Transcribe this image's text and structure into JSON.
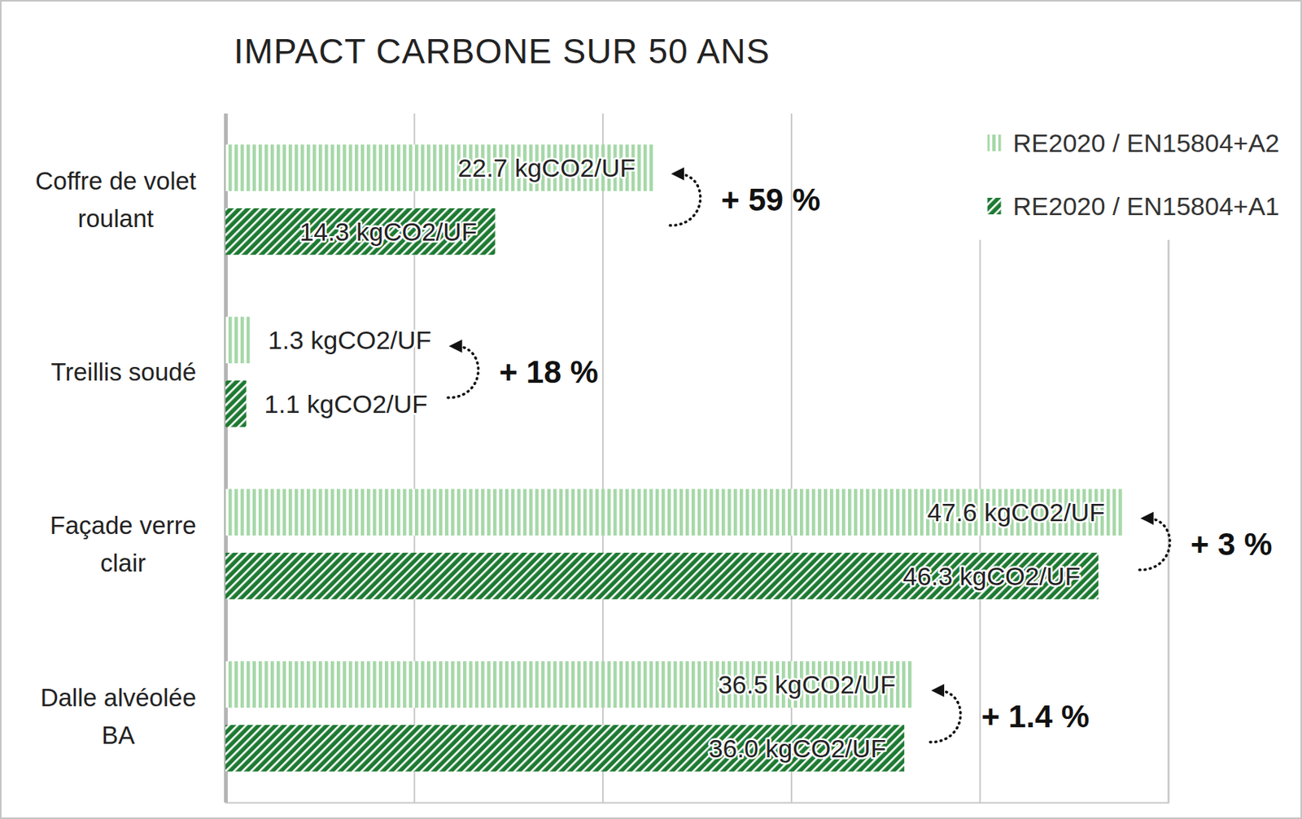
{
  "chart_data": {
    "type": "bar",
    "orientation": "horizontal",
    "title": "IMPACT CARBONE SUR 50 ANS",
    "categories": [
      "Coffre de volet roulant",
      "Treillis soudé",
      "Façade verre clair",
      "Dalle alvéolée BA"
    ],
    "series": [
      {
        "name": "RE2020 / EN15804+A2",
        "color": "#a6d8a8",
        "values": [
          22.7,
          1.3,
          47.6,
          36.5
        ],
        "value_labels": [
          "22.7 kgCO2/UF",
          "1.3 kgCO2/UF",
          "47.6 kgCO2/UF",
          "36.5 kgCO2/UF"
        ]
      },
      {
        "name": "RE2020 / EN15804+A1",
        "color": "#1e7a32",
        "values": [
          14.3,
          1.1,
          46.3,
          36.0
        ],
        "value_labels": [
          "14.3 kgCO2/UF",
          "1.1 kgCO2/UF",
          "46.3 kgCO2/UF",
          "36.0 kgCO2/UF"
        ]
      }
    ],
    "xlim": [
      0,
      50
    ],
    "xticks": [
      0,
      10,
      20,
      30,
      40,
      50
    ],
    "grid": true,
    "tick_labels": false,
    "data_labels": true,
    "legend": "top-right",
    "annotations": [
      "+ 59 %",
      "+ 18 %",
      "+ 3 %",
      "+ 1.4 %"
    ]
  }
}
